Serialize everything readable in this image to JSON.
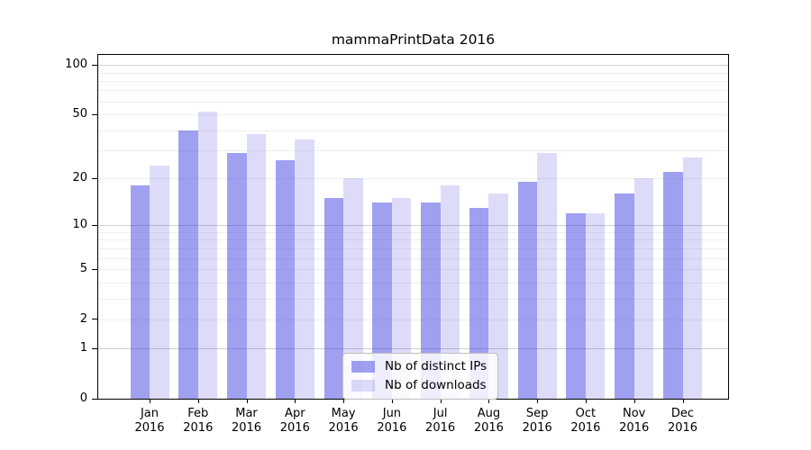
{
  "title": "mammaPrintData 2016",
  "chart_data": {
    "type": "bar",
    "title": "mammaPrintData 2016",
    "xlabel": "",
    "ylabel": "",
    "scale": "log1p",
    "grid": true,
    "legend_position": "bottom-center",
    "year": "2016",
    "categories": [
      "Jan",
      "Feb",
      "Mar",
      "Apr",
      "May",
      "Jun",
      "Jul",
      "Aug",
      "Sep",
      "Oct",
      "Nov",
      "Dec"
    ],
    "series": [
      {
        "name": "Nb of distinct IPs",
        "color": "rgba(65,65,225,0.50)",
        "values": [
          18,
          40,
          29,
          26,
          15,
          14,
          14,
          13,
          19,
          12,
          16,
          22
        ]
      },
      {
        "name": "Nb of downloads",
        "color": "rgba(65,65,225,0.185)",
        "values": [
          24,
          52,
          38,
          35,
          20,
          15,
          18,
          16,
          29,
          12,
          20,
          27
        ]
      }
    ],
    "y_ticks": [
      100,
      50,
      20,
      10,
      5,
      2,
      1,
      0
    ],
    "grid_major": [
      1,
      10,
      100
    ],
    "grid_minor": [
      2,
      3,
      4,
      5,
      6,
      7,
      8,
      9,
      20,
      30,
      40,
      50,
      60,
      70,
      80,
      90
    ],
    "ylim": [
      0,
      115
    ]
  }
}
